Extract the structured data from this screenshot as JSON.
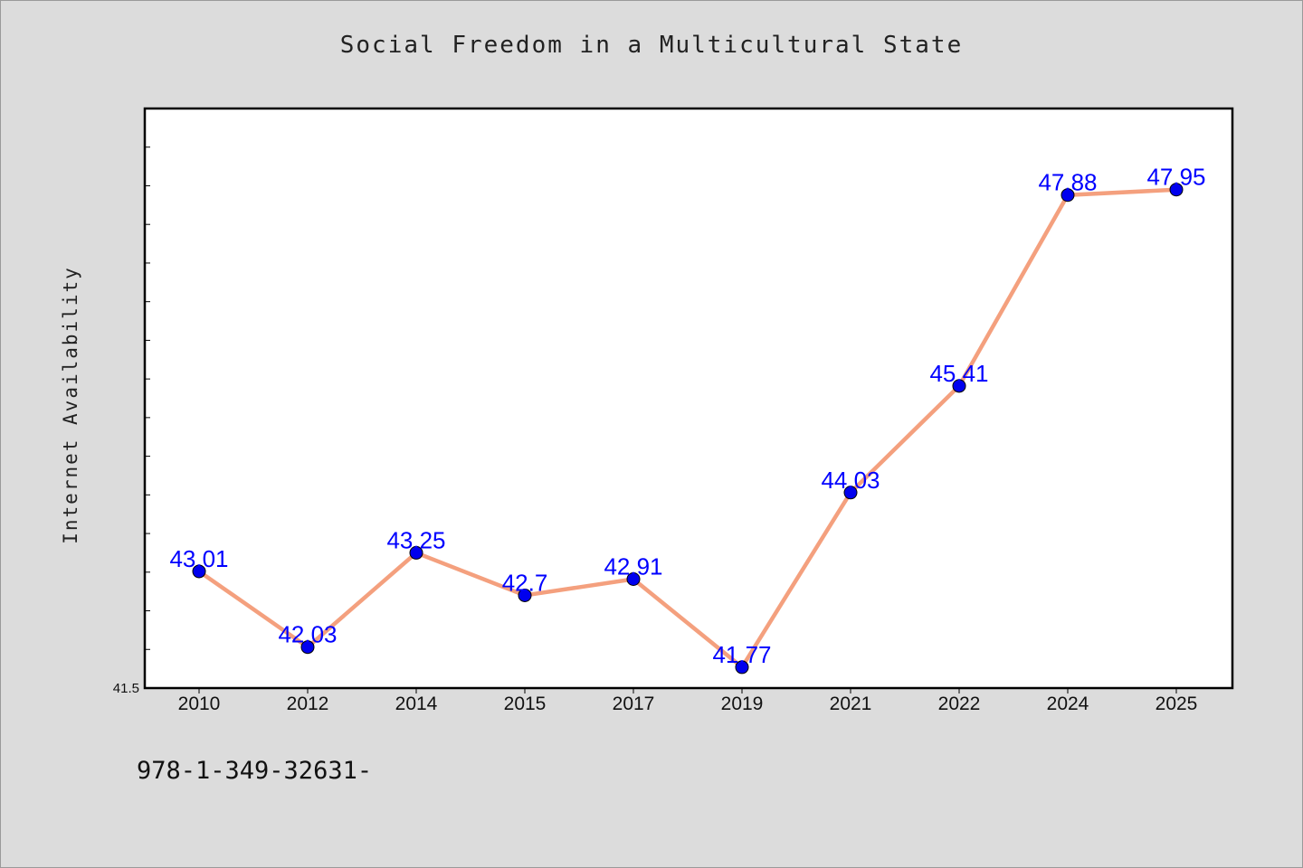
{
  "chart_data": {
    "type": "line",
    "title": "Social Freedom in a Multicultural State",
    "ylabel": "Internet Availability",
    "xlabel": "",
    "categories": [
      "2010",
      "2012",
      "2014",
      "2015",
      "2017",
      "2019",
      "2021",
      "2022",
      "2024",
      "2025"
    ],
    "series": [
      {
        "values": [
          43.01,
          42.03,
          43.25,
          42.7,
          42.91,
          41.77,
          44.03,
          45.41,
          47.88,
          47.95
        ]
      }
    ],
    "data_labels": [
      "43.01",
      "42.03",
      "43.25",
      "42.7",
      "42.91",
      "41.77",
      "44.03",
      "45.41",
      "47.88",
      "47.95"
    ],
    "y_tick_label": "41.5",
    "ylim": [
      41.5,
      49
    ],
    "grid": false,
    "line_color": "#f4a07e",
    "marker_color": "#0000ee",
    "label_color": "#0000ff"
  },
  "footer": {
    "code": "978-1-349-32631-"
  }
}
